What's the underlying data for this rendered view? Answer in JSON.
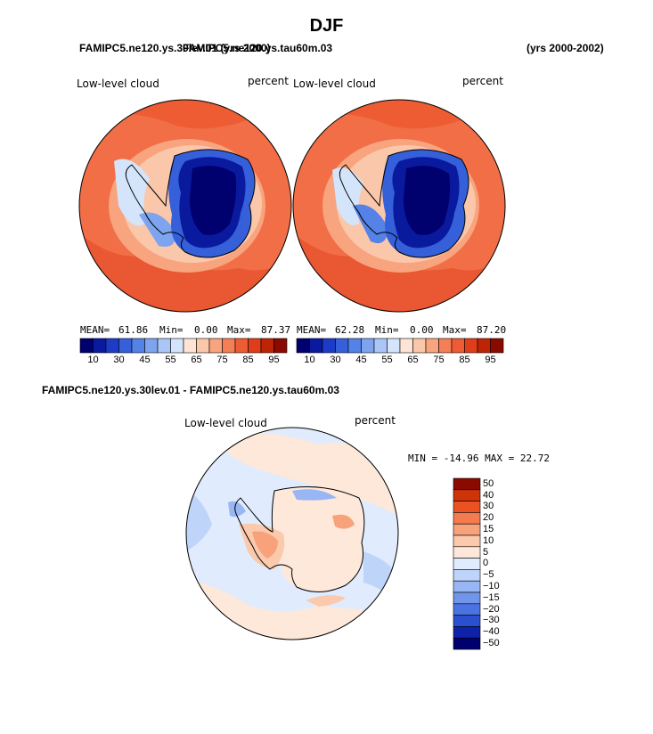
{
  "page": {
    "title": "DJF",
    "header_left_overlap_a": "FAMIPC5.ne120.ys.30lev.01 (yrs 2000)",
    "header_left_overlap_b": "FAMIPC5.ne120.ys.tau60m.03",
    "header_right": "(yrs 2000-2002)",
    "diff_header": "FAMIPC5.ne120.ys.30lev.01 - FAMIPC5.ne120.ys.tau60m.03"
  },
  "colors": {
    "full_scale": [
      "#00006e",
      "#0a1a9e",
      "#1c3cc8",
      "#3560d9",
      "#5582e6",
      "#7ea4ef",
      "#a9c6f6",
      "#d4e4fb",
      "#fde4d4",
      "#fbc7aa",
      "#f8a47e",
      "#f47f57",
      "#ee5c34",
      "#e03d1a",
      "#bf2306",
      "#8a0a00"
    ],
    "diff_scale": [
      "#00006e",
      "#0d22a8",
      "#2a4fcf",
      "#4a72e0",
      "#7095ea",
      "#97b6f3",
      "#bed4f9",
      "#e0ecfd",
      "#fde8da",
      "#fbc9ac",
      "#f8a27c",
      "#f47a50",
      "#ea5224",
      "#cf3308",
      "#8a0a00"
    ]
  },
  "panels": [
    {
      "field": "Low-level cloud",
      "units": "percent",
      "mean_label": "MEAN=",
      "mean": "61.86",
      "min_label": "Min=",
      "min": "0.00",
      "max_label": "Max=",
      "max": "87.37"
    },
    {
      "field": "Low-level cloud",
      "units": "percent",
      "mean_label": "MEAN=",
      "mean": "62.28",
      "min_label": "Min=",
      "min": "0.00",
      "max_label": "Max=",
      "max": "87.20"
    }
  ],
  "colorbar_ticks": [
    "10",
    "30",
    "45",
    "55",
    "65",
    "75",
    "85",
    "95"
  ],
  "diff_panel": {
    "field": "Low-level cloud",
    "units": "percent",
    "minmax": "MIN = -14.96 MAX =  22.72",
    "levels": [
      "50",
      "40",
      "30",
      "20",
      "15",
      "10",
      "5",
      "0",
      "−5",
      "−10",
      "−15",
      "−20",
      "−30",
      "−40",
      "−50"
    ]
  }
}
